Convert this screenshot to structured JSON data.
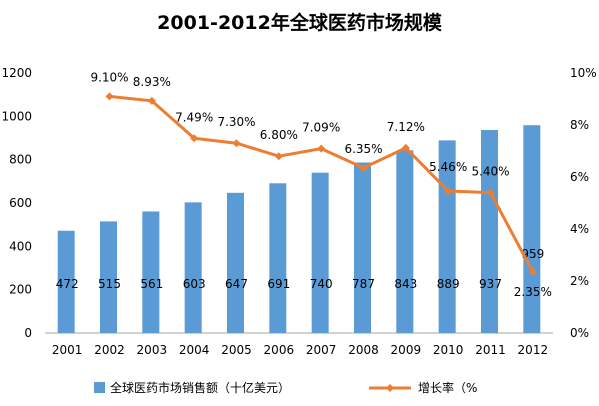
{
  "chart_data": {
    "type": "bar+line",
    "title": "2001-2012年全球医药市场规模",
    "categories": [
      "2001",
      "2002",
      "2003",
      "2004",
      "2005",
      "2006",
      "2007",
      "2008",
      "2009",
      "2010",
      "2011",
      "2012"
    ],
    "series": [
      {
        "name": "全球医药市场销售额（十亿美元）",
        "type": "bar",
        "axis": "left",
        "values": [
          472,
          515,
          561,
          603,
          647,
          691,
          740,
          787,
          843,
          889,
          937,
          959
        ],
        "labels": [
          "472",
          "515",
          "561",
          "603",
          "647",
          "691",
          "740",
          "787",
          "843",
          "889",
          "937",
          "959"
        ]
      },
      {
        "name": "增长率（%",
        "type": "line",
        "axis": "right",
        "values": [
          null,
          9.1,
          8.93,
          7.49,
          7.3,
          6.8,
          7.09,
          6.35,
          7.12,
          5.46,
          5.4,
          2.35
        ],
        "labels": [
          "",
          "9.10%",
          "8.93%",
          "7.49%",
          "7.30%",
          "6.80%",
          "7.09%",
          "6.35%",
          "7.12%",
          "5.46%",
          "5.40%",
          "2.35%"
        ]
      }
    ],
    "y_left": {
      "range": [
        0,
        1200
      ],
      "ticks": [
        "0",
        "200",
        "400",
        "600",
        "800",
        "1000",
        "1200"
      ]
    },
    "y_right": {
      "range": [
        0,
        10
      ],
      "ticks": [
        "0%",
        "2%",
        "4%",
        "6%",
        "8%",
        "10%"
      ]
    },
    "grid": false,
    "legend_position": "bottom",
    "colors": {
      "bar": "#5b9bd5",
      "line": "#ed7d31",
      "axis": "#a6a6a6",
      "text": "#000000"
    }
  }
}
